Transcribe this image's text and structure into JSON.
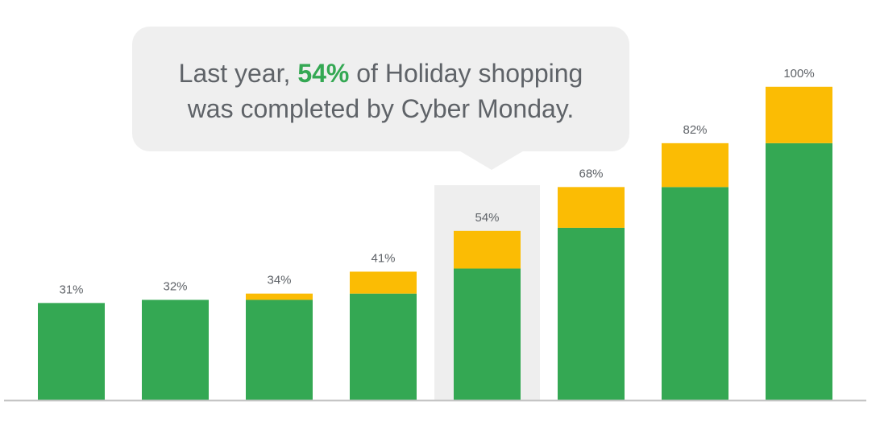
{
  "chart_data": {
    "type": "bar",
    "stacked": true,
    "categories": [
      "",
      "",
      "",
      "",
      "",
      "",
      "",
      ""
    ],
    "labels": [
      "31%",
      "32%",
      "34%",
      "41%",
      "54%",
      "68%",
      "82%",
      "100%"
    ],
    "totals": [
      31,
      32,
      34,
      41,
      54,
      68,
      82,
      100
    ],
    "series": [
      {
        "values": [
          31,
          32,
          32,
          34,
          42,
          55,
          68,
          82
        ]
      },
      {
        "values": [
          0,
          0,
          2,
          7,
          12,
          13,
          14,
          18
        ]
      }
    ],
    "ylim": [
      0,
      102
    ],
    "highlight_index": 4,
    "grid": false,
    "legend": "none",
    "colors": {
      "base": "#34a853",
      "increment": "#fbbc04",
      "highlight_bg": "#eeeeee",
      "axis": "#c4c4c4",
      "label": "#5f6368"
    }
  },
  "callout": {
    "prefix": "Last year, ",
    "highlight": "54%",
    "mid": " of Holiday shopping",
    "line2": "was completed by Cyber Monday."
  }
}
